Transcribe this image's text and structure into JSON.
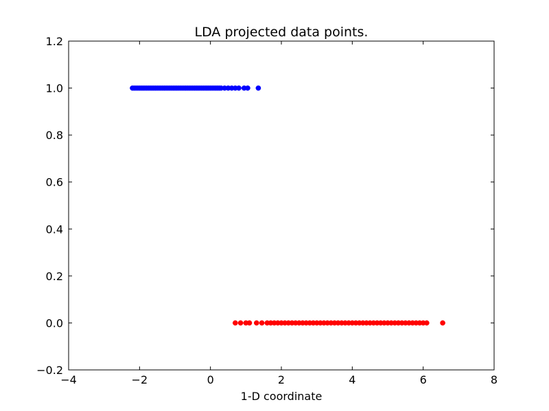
{
  "chart_data": {
    "type": "scatter",
    "title": "LDA projected data points.",
    "xlabel": "1-D coordinate",
    "ylabel": "",
    "xlim": [
      -4,
      8
    ],
    "ylim": [
      -0.2,
      1.2
    ],
    "xticks": [
      -4,
      -2,
      0,
      2,
      4,
      6,
      8
    ],
    "xtick_labels": [
      "−4",
      "−2",
      "0",
      "2",
      "4",
      "6",
      "8"
    ],
    "yticks": [
      -0.2,
      0.0,
      0.2,
      0.4,
      0.6,
      0.8,
      1.0,
      1.2
    ],
    "ytick_labels": [
      "−0.2",
      "0.0",
      "0.2",
      "0.4",
      "0.6",
      "0.8",
      "1.0",
      "1.2"
    ],
    "grid": false,
    "legend": "none",
    "series": [
      {
        "color": "#0000ff",
        "x": [
          -2.2,
          -2.15,
          -2.1,
          -2.05,
          -2.0,
          -1.95,
          -1.9,
          -1.85,
          -1.8,
          -1.75,
          -1.7,
          -1.65,
          -1.6,
          -1.55,
          -1.5,
          -1.45,
          -1.4,
          -1.35,
          -1.3,
          -1.25,
          -1.2,
          -1.15,
          -1.1,
          -1.05,
          -1.0,
          -0.95,
          -0.9,
          -0.85,
          -0.8,
          -0.75,
          -0.7,
          -0.65,
          -0.6,
          -0.55,
          -0.5,
          -0.45,
          -0.4,
          -0.35,
          -0.3,
          -0.25,
          -0.2,
          -0.15,
          -0.1,
          -0.05,
          0.0,
          0.05,
          0.1,
          0.15,
          0.2,
          0.25,
          0.3,
          0.4,
          0.5,
          0.6,
          0.7,
          0.8,
          0.95,
          1.05,
          1.35
        ],
        "y": [
          1,
          1,
          1,
          1,
          1,
          1,
          1,
          1,
          1,
          1,
          1,
          1,
          1,
          1,
          1,
          1,
          1,
          1,
          1,
          1,
          1,
          1,
          1,
          1,
          1,
          1,
          1,
          1,
          1,
          1,
          1,
          1,
          1,
          1,
          1,
          1,
          1,
          1,
          1,
          1,
          1,
          1,
          1,
          1,
          1,
          1,
          1,
          1,
          1,
          1,
          1,
          1,
          1,
          1,
          1,
          1,
          1,
          1,
          1
        ]
      },
      {
        "color": "#ff0000",
        "x": [
          0.7,
          0.85,
          1.0,
          1.1,
          1.3,
          1.45,
          1.6,
          1.7,
          1.8,
          1.9,
          2.0,
          2.1,
          2.2,
          2.3,
          2.4,
          2.5,
          2.6,
          2.7,
          2.8,
          2.9,
          3.0,
          3.1,
          3.2,
          3.3,
          3.4,
          3.5,
          3.6,
          3.7,
          3.8,
          3.9,
          4.0,
          4.1,
          4.2,
          4.3,
          4.4,
          4.5,
          4.6,
          4.7,
          4.8,
          4.9,
          5.0,
          5.1,
          5.2,
          5.3,
          5.4,
          5.5,
          5.6,
          5.7,
          5.8,
          5.9,
          6.0,
          6.1,
          6.55
        ],
        "y": [
          0,
          0,
          0,
          0,
          0,
          0,
          0,
          0,
          0,
          0,
          0,
          0,
          0,
          0,
          0,
          0,
          0,
          0,
          0,
          0,
          0,
          0,
          0,
          0,
          0,
          0,
          0,
          0,
          0,
          0,
          0,
          0,
          0,
          0,
          0,
          0,
          0,
          0,
          0,
          0,
          0,
          0,
          0,
          0,
          0,
          0,
          0,
          0,
          0,
          0,
          0,
          0,
          0
        ]
      }
    ]
  }
}
